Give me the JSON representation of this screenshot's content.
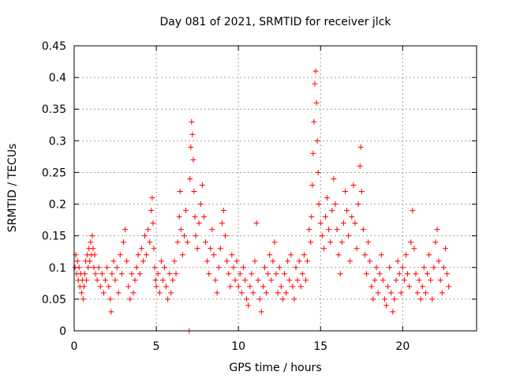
{
  "chart_data": {
    "type": "scatter",
    "title": "Day 081 of 2021, SRMTID for receiver jlck",
    "xlabel": "GPS time / hours",
    "ylabel": "SRMTID / TECUs",
    "xlim": [
      0,
      24.5
    ],
    "ylim": [
      0,
      0.45
    ],
    "xticks": [
      0,
      5,
      10,
      15,
      20
    ],
    "xtick_labels": [
      "0",
      "5",
      "10",
      "15",
      "20"
    ],
    "yticks": [
      0,
      0.05,
      0.1,
      0.15,
      0.2,
      0.25,
      0.3,
      0.35,
      0.4,
      0.45
    ],
    "ytick_labels": [
      "0",
      "0.05",
      "0.1",
      "0.15",
      "0.2",
      "0.25",
      "0.3",
      "0.35",
      "0.4",
      "0.45"
    ],
    "grid": true,
    "marker": "+",
    "color": "#ff0000",
    "series": [
      {
        "name": "SRMTID",
        "points": [
          [
            0.05,
            0.1
          ],
          [
            0.1,
            0.12
          ],
          [
            0.15,
            0.09
          ],
          [
            0.2,
            0.11
          ],
          [
            0.25,
            0.08
          ],
          [
            0.3,
            0.1
          ],
          [
            0.35,
            0.07
          ],
          [
            0.4,
            0.09
          ],
          [
            0.45,
            0.06
          ],
          [
            0.5,
            0.08
          ],
          [
            0.55,
            0.05
          ],
          [
            0.6,
            0.07
          ],
          [
            0.65,
            0.09
          ],
          [
            0.7,
            0.11
          ],
          [
            0.75,
            0.08
          ],
          [
            0.8,
            0.12
          ],
          [
            0.85,
            0.1
          ],
          [
            0.9,
            0.13
          ],
          [
            0.95,
            0.11
          ],
          [
            1.0,
            0.14
          ],
          [
            1.05,
            0.12
          ],
          [
            1.1,
            0.15
          ],
          [
            1.15,
            0.13
          ],
          [
            1.2,
            0.1
          ],
          [
            1.25,
            0.12
          ],
          [
            1.3,
            0.09
          ],
          [
            1.4,
            0.08
          ],
          [
            1.5,
            0.1
          ],
          [
            1.6,
            0.07
          ],
          [
            1.7,
            0.09
          ],
          [
            1.8,
            0.06
          ],
          [
            1.9,
            0.08
          ],
          [
            2.0,
            0.1
          ],
          [
            2.1,
            0.07
          ],
          [
            2.2,
            0.05
          ],
          [
            2.25,
            0.03
          ],
          [
            2.3,
            0.09
          ],
          [
            2.4,
            0.11
          ],
          [
            2.5,
            0.08
          ],
          [
            2.6,
            0.1
          ],
          [
            2.7,
            0.06
          ],
          [
            2.8,
            0.12
          ],
          [
            2.9,
            0.09
          ],
          [
            3.0,
            0.14
          ],
          [
            3.1,
            0.16
          ],
          [
            3.2,
            0.11
          ],
          [
            3.3,
            0.07
          ],
          [
            3.4,
            0.05
          ],
          [
            3.5,
            0.09
          ],
          [
            3.6,
            0.06
          ],
          [
            3.7,
            0.08
          ],
          [
            3.8,
            0.1
          ],
          [
            3.9,
            0.12
          ],
          [
            4.0,
            0.09
          ],
          [
            4.1,
            0.13
          ],
          [
            4.2,
            0.11
          ],
          [
            4.3,
            0.15
          ],
          [
            4.4,
            0.12
          ],
          [
            4.5,
            0.16
          ],
          [
            4.6,
            0.14
          ],
          [
            4.7,
            0.19
          ],
          [
            4.75,
            0.21
          ],
          [
            4.8,
            0.17
          ],
          [
            4.85,
            0.13
          ],
          [
            4.9,
            0.1
          ],
          [
            4.95,
            0.08
          ],
          [
            5.0,
            0.07
          ],
          [
            5.1,
            0.09
          ],
          [
            5.2,
            0.06
          ],
          [
            5.3,
            0.11
          ],
          [
            5.4,
            0.08
          ],
          [
            5.5,
            0.1
          ],
          [
            5.6,
            0.07
          ],
          [
            5.7,
            0.05
          ],
          [
            5.8,
            0.09
          ],
          [
            5.9,
            0.06
          ],
          [
            6.0,
            0.08
          ],
          [
            6.1,
            0.11
          ],
          [
            6.2,
            0.09
          ],
          [
            6.3,
            0.14
          ],
          [
            6.4,
            0.18
          ],
          [
            6.45,
            0.22
          ],
          [
            6.5,
            0.16
          ],
          [
            6.6,
            0.12
          ],
          [
            6.7,
            0.15
          ],
          [
            6.8,
            0.19
          ],
          [
            6.9,
            0.14
          ],
          [
            7.0,
            0.0
          ],
          [
            7.05,
            0.24
          ],
          [
            7.1,
            0.29
          ],
          [
            7.15,
            0.33
          ],
          [
            7.2,
            0.31
          ],
          [
            7.25,
            0.27
          ],
          [
            7.3,
            0.22
          ],
          [
            7.35,
            0.18
          ],
          [
            7.4,
            0.15
          ],
          [
            7.5,
            0.13
          ],
          [
            7.6,
            0.17
          ],
          [
            7.7,
            0.2
          ],
          [
            7.8,
            0.23
          ],
          [
            7.9,
            0.18
          ],
          [
            8.0,
            0.14
          ],
          [
            8.1,
            0.11
          ],
          [
            8.2,
            0.09
          ],
          [
            8.3,
            0.13
          ],
          [
            8.4,
            0.16
          ],
          [
            8.5,
            0.12
          ],
          [
            8.6,
            0.08
          ],
          [
            8.7,
            0.06
          ],
          [
            8.8,
            0.1
          ],
          [
            8.9,
            0.13
          ],
          [
            9.0,
            0.17
          ],
          [
            9.1,
            0.19
          ],
          [
            9.2,
            0.15
          ],
          [
            9.3,
            0.11
          ],
          [
            9.4,
            0.09
          ],
          [
            9.5,
            0.07
          ],
          [
            9.6,
            0.12
          ],
          [
            9.7,
            0.1
          ],
          [
            9.8,
            0.08
          ],
          [
            9.9,
            0.11
          ],
          [
            10.0,
            0.07
          ],
          [
            10.1,
            0.09
          ],
          [
            10.2,
            0.06
          ],
          [
            10.3,
            0.1
          ],
          [
            10.4,
            0.08
          ],
          [
            10.5,
            0.05
          ],
          [
            10.6,
            0.04
          ],
          [
            10.7,
            0.07
          ],
          [
            10.8,
            0.09
          ],
          [
            10.9,
            0.06
          ],
          [
            11.0,
            0.11
          ],
          [
            11.1,
            0.17
          ],
          [
            11.2,
            0.08
          ],
          [
            11.3,
            0.05
          ],
          [
            11.4,
            0.03
          ],
          [
            11.5,
            0.07
          ],
          [
            11.6,
            0.1
          ],
          [
            11.7,
            0.06
          ],
          [
            11.8,
            0.09
          ],
          [
            11.9,
            0.12
          ],
          [
            12.0,
            0.08
          ],
          [
            12.1,
            0.11
          ],
          [
            12.2,
            0.14
          ],
          [
            12.3,
            0.09
          ],
          [
            12.4,
            0.06
          ],
          [
            12.5,
            0.1
          ],
          [
            12.6,
            0.07
          ],
          [
            12.7,
            0.05
          ],
          [
            12.8,
            0.09
          ],
          [
            12.9,
            0.06
          ],
          [
            13.0,
            0.11
          ],
          [
            13.1,
            0.08
          ],
          [
            13.2,
            0.12
          ],
          [
            13.3,
            0.07
          ],
          [
            13.4,
            0.05
          ],
          [
            13.5,
            0.1
          ],
          [
            13.6,
            0.08
          ],
          [
            13.7,
            0.11
          ],
          [
            13.8,
            0.07
          ],
          [
            13.9,
            0.09
          ],
          [
            14.0,
            0.12
          ],
          [
            14.1,
            0.08
          ],
          [
            14.2,
            0.11
          ],
          [
            14.3,
            0.16
          ],
          [
            14.4,
            0.14
          ],
          [
            14.45,
            0.18
          ],
          [
            14.5,
            0.23
          ],
          [
            14.55,
            0.28
          ],
          [
            14.6,
            0.33
          ],
          [
            14.65,
            0.39
          ],
          [
            14.7,
            0.41
          ],
          [
            14.75,
            0.36
          ],
          [
            14.8,
            0.3
          ],
          [
            14.85,
            0.25
          ],
          [
            14.9,
            0.2
          ],
          [
            15.0,
            0.17
          ],
          [
            15.1,
            0.15
          ],
          [
            15.2,
            0.13
          ],
          [
            15.3,
            0.18
          ],
          [
            15.4,
            0.21
          ],
          [
            15.5,
            0.16
          ],
          [
            15.6,
            0.14
          ],
          [
            15.7,
            0.19
          ],
          [
            15.8,
            0.24
          ],
          [
            15.9,
            0.2
          ],
          [
            16.0,
            0.16
          ],
          [
            16.1,
            0.12
          ],
          [
            16.2,
            0.09
          ],
          [
            16.3,
            0.14
          ],
          [
            16.4,
            0.17
          ],
          [
            16.5,
            0.22
          ],
          [
            16.6,
            0.19
          ],
          [
            16.7,
            0.15
          ],
          [
            16.8,
            0.11
          ],
          [
            16.9,
            0.18
          ],
          [
            17.0,
            0.23
          ],
          [
            17.1,
            0.17
          ],
          [
            17.2,
            0.13
          ],
          [
            17.3,
            0.2
          ],
          [
            17.4,
            0.26
          ],
          [
            17.45,
            0.29
          ],
          [
            17.5,
            0.22
          ],
          [
            17.6,
            0.16
          ],
          [
            17.7,
            0.12
          ],
          [
            17.8,
            0.09
          ],
          [
            17.9,
            0.14
          ],
          [
            18.0,
            0.11
          ],
          [
            18.1,
            0.07
          ],
          [
            18.2,
            0.05
          ],
          [
            18.3,
            0.08
          ],
          [
            18.4,
            0.1
          ],
          [
            18.5,
            0.06
          ],
          [
            18.6,
            0.09
          ],
          [
            18.7,
            0.12
          ],
          [
            18.8,
            0.08
          ],
          [
            18.9,
            0.05
          ],
          [
            19.0,
            0.04
          ],
          [
            19.1,
            0.07
          ],
          [
            19.2,
            0.1
          ],
          [
            19.3,
            0.06
          ],
          [
            19.4,
            0.03
          ],
          [
            19.5,
            0.05
          ],
          [
            19.6,
            0.08
          ],
          [
            19.7,
            0.11
          ],
          [
            19.8,
            0.09
          ],
          [
            19.9,
            0.06
          ],
          [
            20.0,
            0.1
          ],
          [
            20.1,
            0.08
          ],
          [
            20.2,
            0.12
          ],
          [
            20.3,
            0.09
          ],
          [
            20.4,
            0.07
          ],
          [
            20.5,
            0.14
          ],
          [
            20.6,
            0.19
          ],
          [
            20.7,
            0.13
          ],
          [
            20.8,
            0.09
          ],
          [
            20.9,
            0.06
          ],
          [
            21.0,
            0.08
          ],
          [
            21.1,
            0.05
          ],
          [
            21.2,
            0.07
          ],
          [
            21.3,
            0.1
          ],
          [
            21.4,
            0.06
          ],
          [
            21.5,
            0.09
          ],
          [
            21.6,
            0.12
          ],
          [
            21.7,
            0.08
          ],
          [
            21.8,
            0.05
          ],
          [
            21.9,
            0.1
          ],
          [
            22.0,
            0.14
          ],
          [
            22.1,
            0.16
          ],
          [
            22.2,
            0.11
          ],
          [
            22.3,
            0.08
          ],
          [
            22.4,
            0.06
          ],
          [
            22.5,
            0.1
          ],
          [
            22.6,
            0.13
          ],
          [
            22.7,
            0.09
          ],
          [
            22.8,
            0.07
          ]
        ]
      }
    ]
  }
}
